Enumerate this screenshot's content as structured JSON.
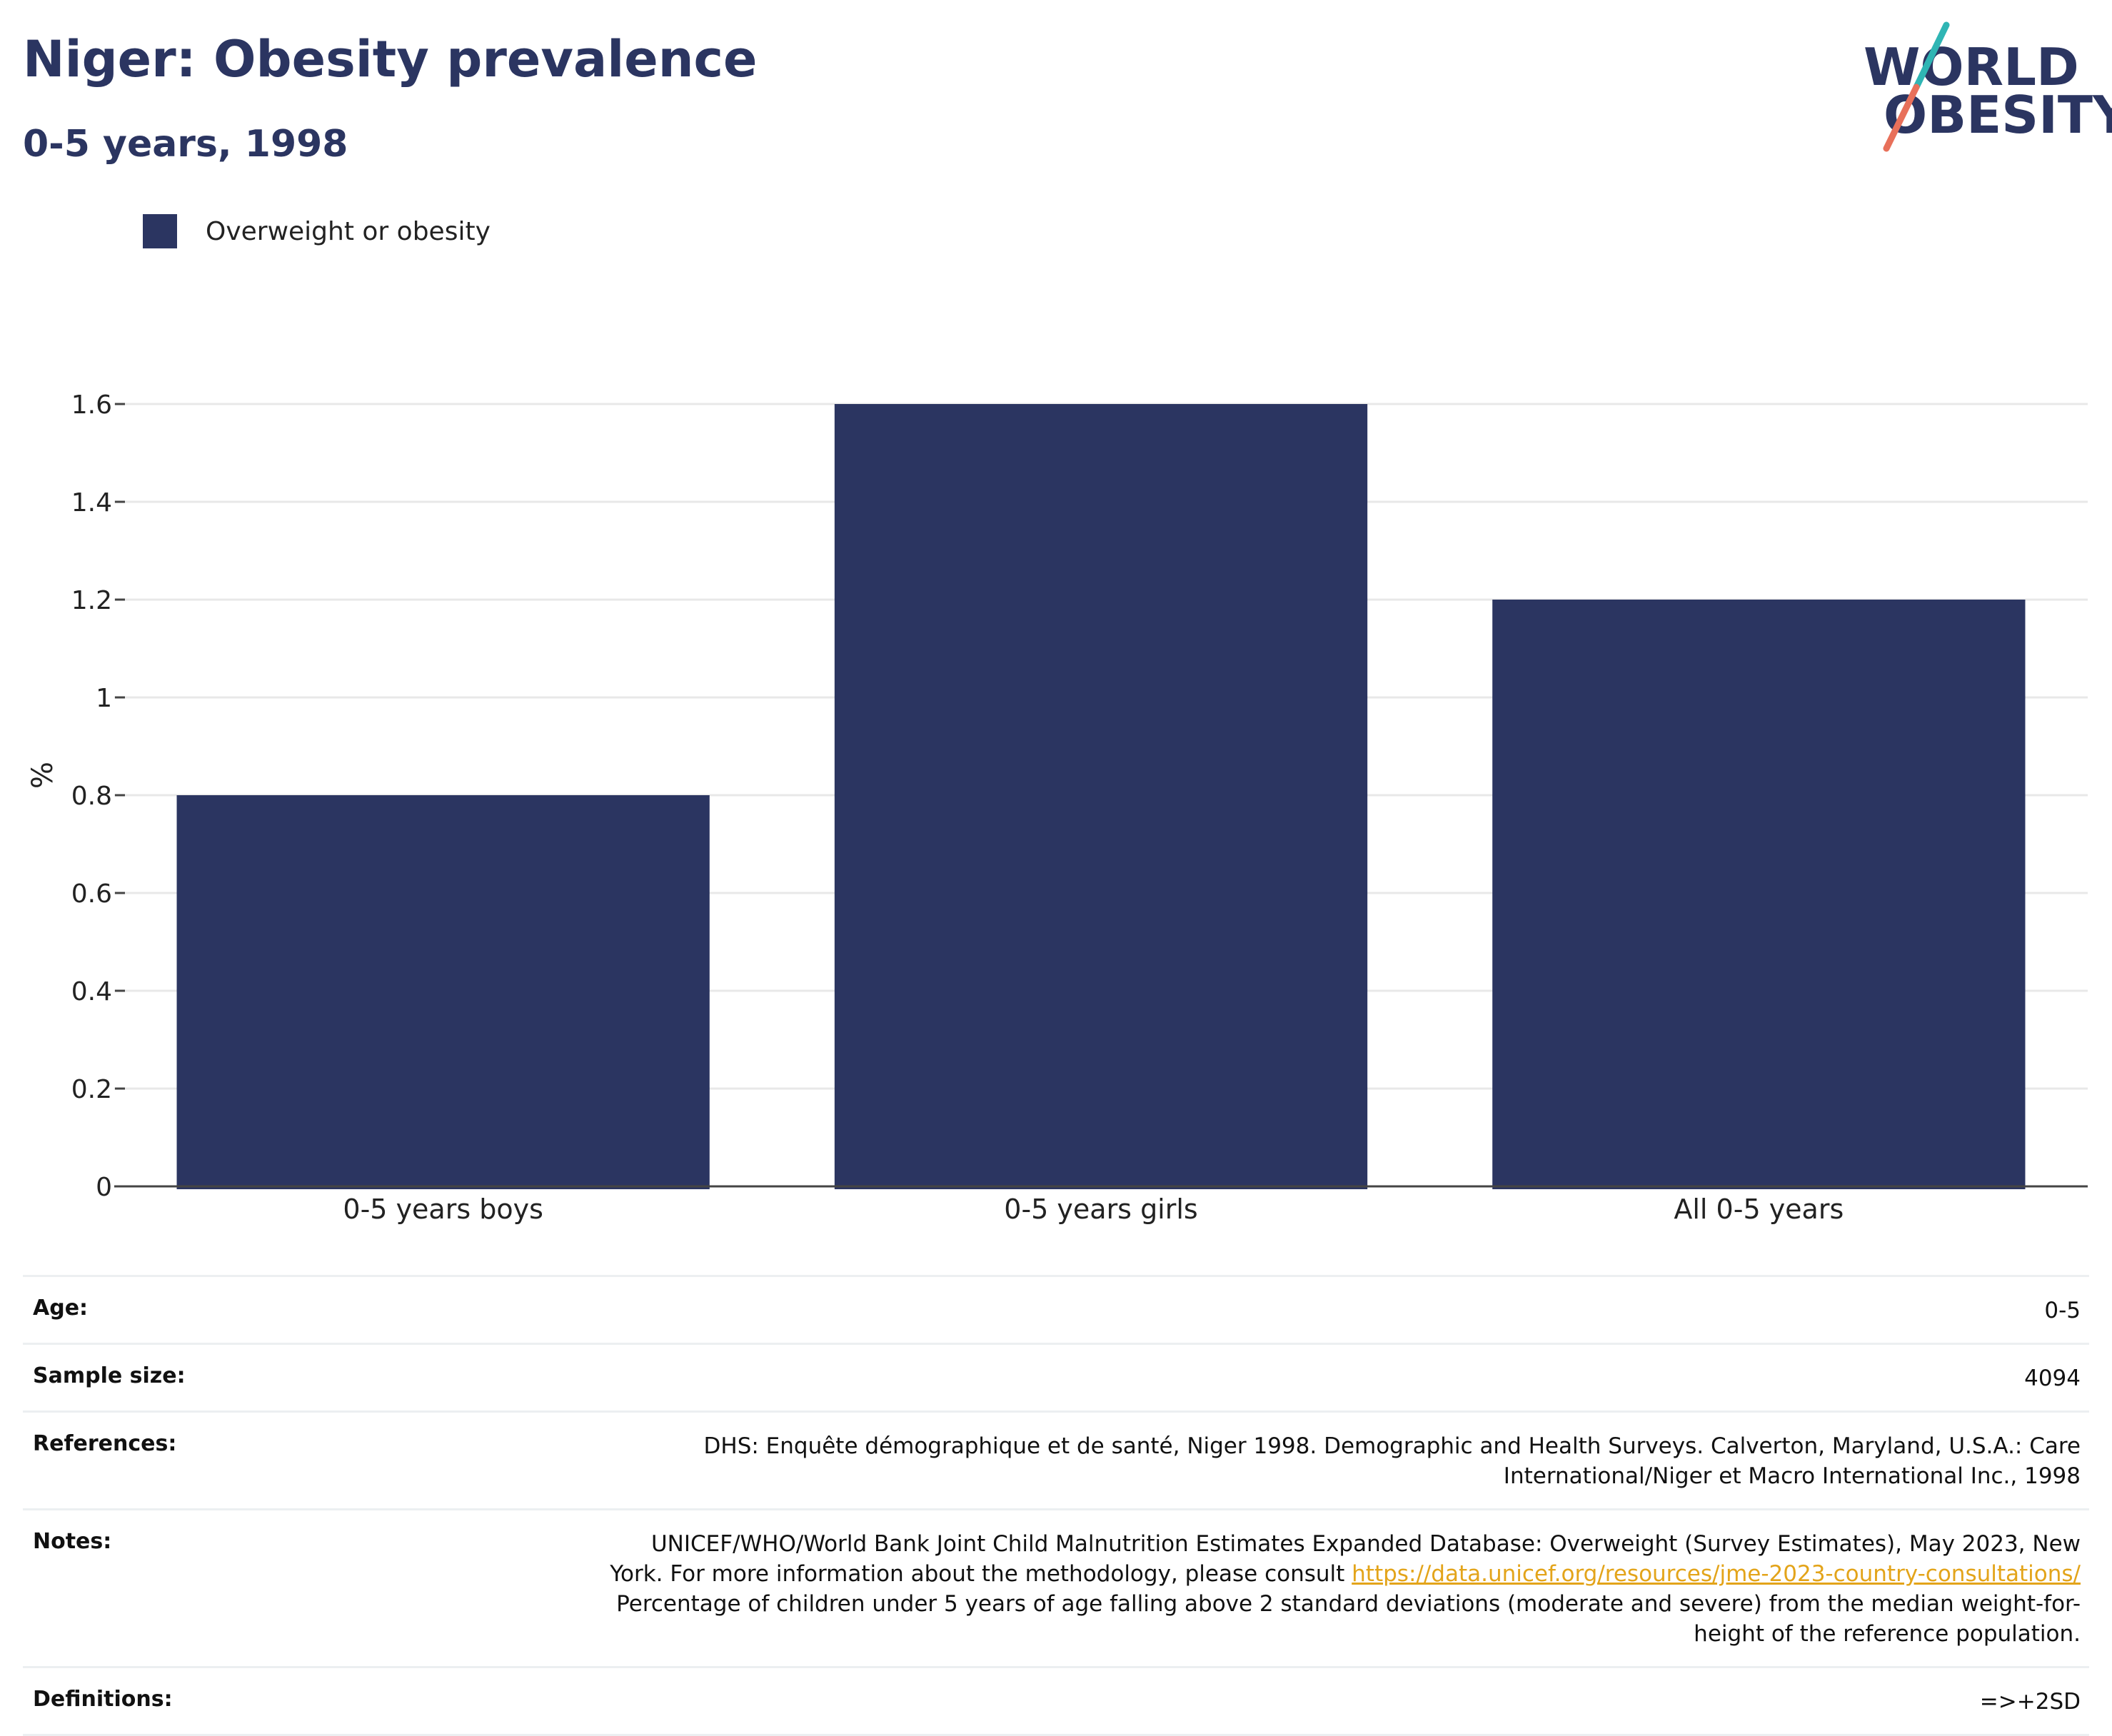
{
  "header": {
    "title": "Niger: Obesity prevalence",
    "subtitle": "0-5 years, 1998"
  },
  "logo": {
    "line1": "WORLD",
    "line2": "OBESITY",
    "colors": {
      "text": "#2b3561",
      "slash_top": "#2fb5b4",
      "slash_bottom": "#e8705a"
    }
  },
  "legend": {
    "label": "Overweight or obesity",
    "color": "#2b3561"
  },
  "chart_data": {
    "type": "bar",
    "categories": [
      "0-5 years boys",
      "0-5 years girls",
      "All 0-5 years"
    ],
    "series": [
      {
        "name": "Overweight or obesity",
        "values": [
          0.8,
          1.6,
          1.2
        ],
        "color": "#2b3561"
      }
    ],
    "ylabel": "%",
    "ylim": [
      0,
      1.6
    ],
    "yticks": [
      0,
      0.2,
      0.4,
      0.6,
      0.8,
      1,
      1.2,
      1.4,
      1.6
    ],
    "ytick_labels": [
      "0",
      "0.2",
      "0.4",
      "0.6",
      "0.8",
      "1",
      "1.2",
      "1.4",
      "1.6"
    ],
    "grid": true,
    "legend_position": "top-left"
  },
  "info": {
    "age_label": "Age:",
    "age_value": "0-5",
    "sample_label": "Sample size:",
    "sample_value": "4094",
    "references_label": "References:",
    "references_line1": "DHS: Enquête démographique et de santé, Niger 1998. Demographic and Health Surveys. Calverton, Maryland, U.S.A.: Care",
    "references_line2": "International/Niger et Macro International Inc., 1998",
    "notes_label": "Notes:",
    "notes_line1": "UNICEF/WHO/World Bank Joint Child Malnutrition Estimates Expanded Database: Overweight (Survey Estimates), May 2023, New",
    "notes_line2_prefix": "York. For more information about the methodology, please consult ",
    "notes_link": "https://data.unicef.org/resources/jme-2023-country-consultations/",
    "notes_line3": "Percentage of children under 5 years of age falling above 2 standard deviations (moderate and severe) from the median weight-for-",
    "notes_line4": "height of the reference population.",
    "definitions_label": "Definitions:",
    "definitions_value": "=>+2SD"
  }
}
